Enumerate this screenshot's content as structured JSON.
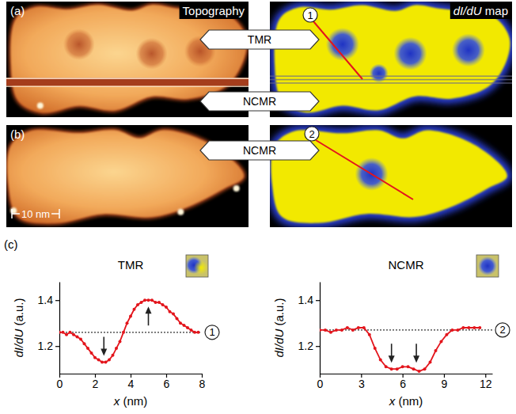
{
  "figure": {
    "panel_labels": [
      "(a)",
      "(b)",
      "(c)"
    ],
    "image_titles": [
      "Topography",
      "dI/dU map"
    ],
    "tags": [
      "TMR",
      "NCMR",
      "NCMR"
    ],
    "scale_bar": "10 nm"
  },
  "chart_data": [
    {
      "type": "line",
      "title": "TMR",
      "x_label": "x (nm)",
      "y_label": "dI/dU (a.u.)",
      "annotation": "1",
      "xlim": [
        0,
        8
      ],
      "xticks": [
        0,
        2,
        4,
        6,
        8
      ],
      "ylim": [
        1.08,
        1.48
      ],
      "yticks": [
        1.2,
        1.4
      ],
      "x": [
        0,
        0.2,
        0.4,
        0.6,
        0.8,
        1,
        1.2,
        1.4,
        1.6,
        1.8,
        2,
        2.2,
        2.4,
        2.6,
        2.8,
        3,
        3.2,
        3.4,
        3.6,
        3.8,
        4,
        4.2,
        4.4,
        4.6,
        4.8,
        5,
        5.2,
        5.4,
        5.6,
        5.8,
        6,
        6.2,
        6.4,
        6.6,
        6.8,
        7,
        7.2,
        7.4,
        7.6,
        7.8
      ],
      "series": [
        {
          "color": "#e3151c",
          "marker": "circle",
          "line_style": "solid",
          "values": [
            1.26,
            1.26,
            1.25,
            1.26,
            1.25,
            1.24,
            1.23,
            1.21,
            1.19,
            1.17,
            1.15,
            1.14,
            1.13,
            1.13,
            1.14,
            1.16,
            1.19,
            1.22,
            1.26,
            1.3,
            1.33,
            1.36,
            1.38,
            1.39,
            1.4,
            1.4,
            1.4,
            1.39,
            1.39,
            1.38,
            1.37,
            1.35,
            1.34,
            1.32,
            1.3,
            1.29,
            1.28,
            1.27,
            1.26,
            1.26
          ]
        }
      ],
      "reference_line": 1.26,
      "arrows": [
        2.5,
        5.0
      ]
    },
    {
      "type": "line",
      "title": "NCMR",
      "x_label": "x (nm)",
      "y_label": "dI/dU (a.u.)",
      "annotation": "2",
      "xlim": [
        0,
        12.5
      ],
      "xticks": [
        0,
        3,
        6,
        9,
        12
      ],
      "ylim": [
        1.08,
        1.48
      ],
      "yticks": [
        1.2,
        1.4
      ],
      "x": [
        0,
        0.4,
        0.8,
        1.2,
        1.6,
        2,
        2.4,
        2.8,
        3.2,
        3.6,
        4,
        4.4,
        4.8,
        5.2,
        5.6,
        6,
        6.4,
        6.8,
        7.2,
        7.6,
        8,
        8.4,
        8.8,
        9.2,
        9.6,
        10,
        10.4,
        10.8,
        11.2,
        11.6
      ],
      "series": [
        {
          "color": "#e3151c",
          "marker": "circle",
          "line_style": "solid",
          "values": [
            1.27,
            1.27,
            1.26,
            1.27,
            1.27,
            1.28,
            1.27,
            1.28,
            1.28,
            1.25,
            1.19,
            1.14,
            1.11,
            1.1,
            1.1,
            1.11,
            1.11,
            1.1,
            1.09,
            1.1,
            1.13,
            1.18,
            1.22,
            1.25,
            1.27,
            1.27,
            1.28,
            1.28,
            1.28,
            1.28
          ]
        }
      ],
      "reference_line": 1.27,
      "arrows": [
        5.2,
        7.0
      ]
    }
  ]
}
